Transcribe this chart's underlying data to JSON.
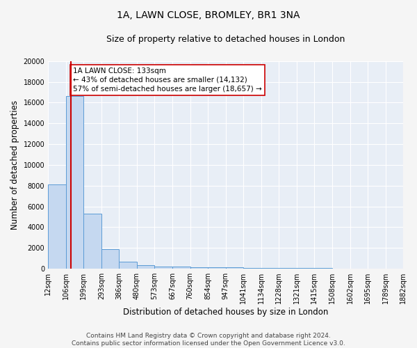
{
  "title": "1A, LAWN CLOSE, BROMLEY, BR1 3NA",
  "subtitle": "Size of property relative to detached houses in London",
  "xlabel": "Distribution of detached houses by size in London",
  "ylabel": "Number of detached properties",
  "bin_edges": [
    12,
    106,
    199,
    293,
    386,
    480,
    573,
    667,
    760,
    854,
    947,
    1041,
    1134,
    1228,
    1321,
    1415,
    1508,
    1602,
    1695,
    1789,
    1882
  ],
  "bar_heights": [
    8100,
    16600,
    5300,
    1850,
    700,
    320,
    220,
    200,
    170,
    150,
    120,
    100,
    80,
    60,
    50,
    40,
    30,
    20,
    15,
    10
  ],
  "bar_color": "#c5d8f0",
  "bar_edgecolor": "#5b9bd5",
  "background_color": "#e8eef6",
  "grid_color": "#ffffff",
  "red_line_x": 133,
  "red_line_color": "#cc0000",
  "annotation_line1": "1A LAWN CLOSE: 133sqm",
  "annotation_line2": "← 43% of detached houses are smaller (14,132)",
  "annotation_line3": "57% of semi-detached houses are larger (18,657) →",
  "annotation_box_color": "#ffffff",
  "annotation_box_edgecolor": "#cc0000",
  "ylim": [
    0,
    20000
  ],
  "yticks": [
    0,
    2000,
    4000,
    6000,
    8000,
    10000,
    12000,
    14000,
    16000,
    18000,
    20000
  ],
  "footnote": "Contains HM Land Registry data © Crown copyright and database right 2024.\nContains public sector information licensed under the Open Government Licence v3.0.",
  "title_fontsize": 10,
  "subtitle_fontsize": 9,
  "xlabel_fontsize": 8.5,
  "ylabel_fontsize": 8.5,
  "tick_fontsize": 7,
  "annotation_fontsize": 7.5,
  "footnote_fontsize": 6.5
}
